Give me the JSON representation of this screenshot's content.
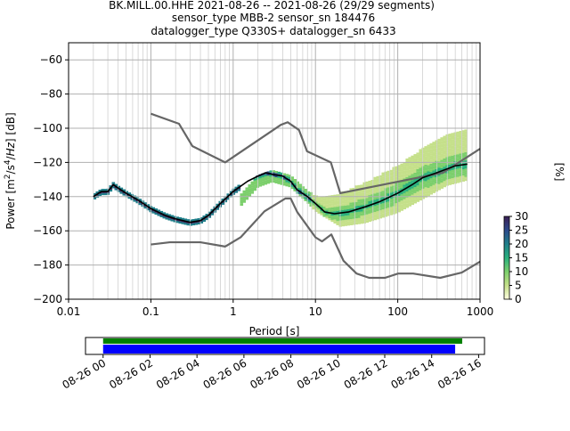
{
  "title_lines": [
    "BK.MILL.00.HHE   2021-08-26 -- 2021-08-26  (29/29 segments)",
    "sensor_type MBB-2 sensor_sn 184476",
    "datalogger_type Q330S+ datalogger_sn 6433"
  ],
  "chart_data": {
    "type": "heatmap",
    "xlabel": "Period [s]",
    "ylabel": "Power [m²/s⁴/Hz] [dB]",
    "x_scale": "log",
    "xlim": [
      0.01,
      1000
    ],
    "ylim": [
      -200,
      -50
    ],
    "x_ticks": [
      0.01,
      0.1,
      1,
      10,
      100,
      1000
    ],
    "x_tick_labels": [
      "0.01",
      "0.1",
      "1",
      "10",
      "100",
      "1000"
    ],
    "y_ticks": [
      -200,
      -180,
      -160,
      -140,
      -120,
      -100,
      -80,
      -60
    ],
    "y_tick_labels": [
      "−200",
      "−180",
      "−160",
      "−140",
      "−120",
      "−100",
      "−80",
      "−60"
    ],
    "grid": true,
    "colorbar": {
      "label": "[%]",
      "range": [
        0,
        30
      ],
      "ticks": [
        0,
        5,
        10,
        15,
        20,
        25,
        30
      ],
      "colors": [
        "#ffffe0",
        "#c5e08a",
        "#7ccf6c",
        "#29b07d",
        "#1f7f8a",
        "#2c4a8c",
        "#3b1f55"
      ]
    },
    "noise_model_high": {
      "color": "#666666",
      "x": [
        0.1,
        0.22,
        0.32,
        0.8,
        3.8,
        4.6,
        6.3,
        7.9,
        15.4,
        20,
        354.8,
        1000
      ],
      "y": [
        -91.5,
        -97.4,
        -110.5,
        -120,
        -98,
        -96.5,
        -101,
        -113.5,
        -120,
        -138,
        -126,
        -112
      ]
    },
    "noise_model_low": {
      "color": "#666666",
      "x": [
        0.1,
        0.17,
        0.4,
        0.8,
        1.24,
        2.4,
        4.3,
        5,
        6,
        10,
        12,
        15.6,
        21.9,
        31.6,
        45,
        70,
        101,
        154,
        328,
        600,
        1000
      ],
      "y": [
        -168,
        -166.7,
        -166.7,
        -169.2,
        -163.7,
        -148.6,
        -141.1,
        -141.1,
        -149,
        -163.8,
        -166.2,
        -162.1,
        -177.5,
        -185,
        -187.5,
        -187.5,
        -185,
        -185,
        -187.5,
        -184.4,
        -178
      ]
    },
    "mean_line": {
      "color": "#000000",
      "x": [
        0.02,
        0.025,
        0.03,
        0.035,
        0.04,
        0.05,
        0.07,
        0.1,
        0.15,
        0.2,
        0.3,
        0.4,
        0.5,
        0.7,
        1,
        1.5,
        2,
        2.5,
        3,
        4,
        5,
        6,
        8,
        10,
        13,
        17,
        25,
        40,
        60,
        100,
        150,
        200,
        300,
        500,
        700
      ],
      "y": [
        -140,
        -137,
        -137,
        -133,
        -135,
        -138,
        -142,
        -147,
        -151,
        -153,
        -155,
        -154,
        -151,
        -144,
        -137,
        -131,
        -128,
        -126,
        -127,
        -128,
        -131,
        -136,
        -140,
        -144,
        -149,
        -150,
        -149,
        -146,
        -143,
        -138,
        -133,
        -129,
        -126,
        -122,
        -121
      ]
    },
    "distribution_spread": {
      "x": [
        1.2,
        2,
        3,
        5,
        8,
        10,
        20,
        40,
        100,
        200,
        400,
        700
      ],
      "lower": [
        -146,
        -134,
        -131,
        -134,
        -143,
        -148,
        -157,
        -155,
        -149,
        -141,
        -133,
        -130
      ],
      "upper": [
        -140,
        -128,
        -125,
        -128,
        -136,
        -140,
        -138,
        -132,
        -122,
        -112,
        -104,
        -100
      ]
    },
    "availability": {
      "x_tick_labels": [
        "08-26 00",
        "08-26 02",
        "08-26 04",
        "08-26 06",
        "08-26 08",
        "08-26 10",
        "08-26 12",
        "08-26 14",
        "08-26 16"
      ],
      "range_hours": [
        -0.75,
        16.25
      ],
      "data_present": [
        0,
        15.3
      ],
      "gaps_overlaps": [
        0,
        15.0
      ],
      "colors": {
        "data": "#0000ff",
        "segments": "#008000"
      }
    }
  }
}
